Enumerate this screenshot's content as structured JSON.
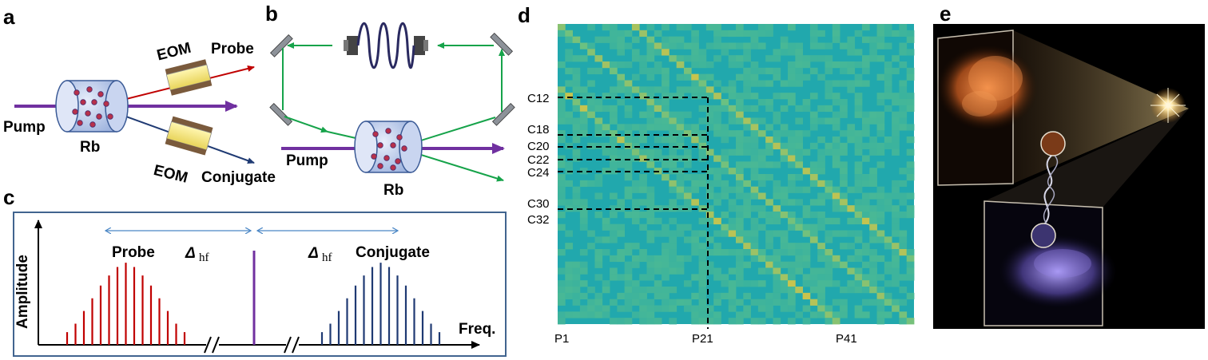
{
  "panels": {
    "a": {
      "letter": "a",
      "probe": "Probe",
      "pump": "Pump",
      "rb": "Rb",
      "eom_top": "EOM",
      "eom_bottom": "EOM",
      "conjugate": "Conjugate"
    },
    "b": {
      "letter": "b",
      "pump": "Pump",
      "rb": "Rb"
    },
    "c": {
      "letter": "c",
      "ylabel": "Amplitude",
      "xlabel": "Freq.",
      "probe": "Probe",
      "conjugate": "Conjugate",
      "delta_symbol": "Δ",
      "delta_sub": "hf",
      "probe_comb": [
        0.15,
        0.25,
        0.4,
        0.55,
        0.7,
        0.82,
        0.92,
        0.97,
        0.92,
        0.82,
        0.7,
        0.55,
        0.4,
        0.25,
        0.15
      ],
      "conjugate_comb": [
        0.15,
        0.25,
        0.4,
        0.55,
        0.7,
        0.82,
        0.92,
        0.97,
        0.92,
        0.82,
        0.7,
        0.55,
        0.4,
        0.25,
        0.15
      ],
      "pump_line": 1.0
    },
    "d": {
      "letter": "d",
      "row_labels": [
        "C12",
        "C18",
        "C20",
        "C22",
        "C24",
        "C30",
        "C32"
      ],
      "col_labels": [
        "P1",
        "P21",
        "P41"
      ],
      "matrix_size": 48,
      "colors": {
        "background": "#21a8ad",
        "mid": "#5cc08a",
        "high": "#e6c53c"
      }
    },
    "e": {
      "letter": "e"
    }
  },
  "colors": {
    "probe_red": "#c00000",
    "conjugate_blue": "#1f3a73",
    "pump_purple": "#7030a0",
    "green_beam": "#16a34a",
    "frame_blue": "#41648f"
  }
}
